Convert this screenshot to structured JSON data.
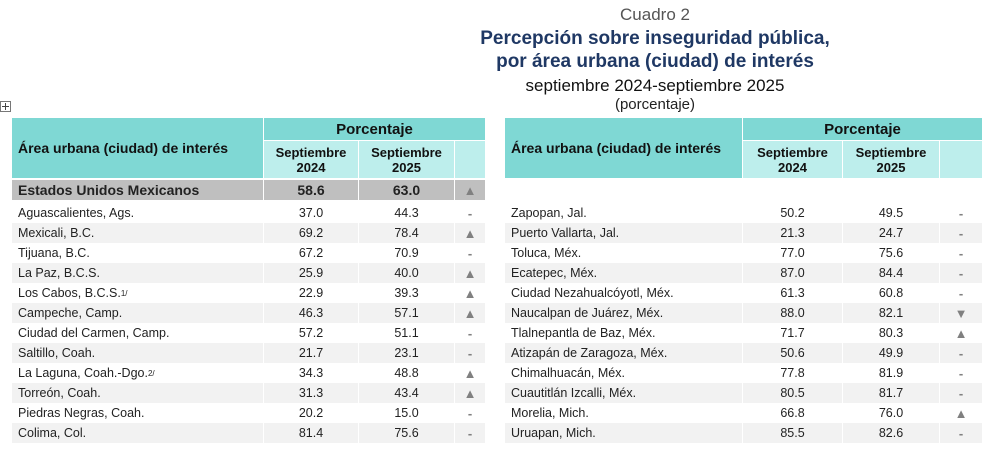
{
  "header": {
    "label": "Cuadro 2",
    "title_lines": [
      "Percepción sobre inseguridad pública,",
      "por área urbana (ciudad) de interés"
    ],
    "subtitle": "septiembre 2024-septiembre 2025",
    "unit": "(porcentaje)"
  },
  "tables": [
    {
      "columns": {
        "area": "Área urbana (ciudad) de interés",
        "group": "Porcentaje",
        "c2024": "Septiembre 2024",
        "c2025": "Septiembre 2025"
      },
      "total": {
        "area": "Estados Unidos Mexicanos",
        "v2024": "58.6",
        "v2025": "63.0",
        "trend": "▲"
      },
      "rows": [
        {
          "area": "Aguascalientes, Ags.",
          "v2024": "37.0",
          "v2025": "44.3",
          "trend": "-"
        },
        {
          "area": "Mexicali, B.C.",
          "v2024": "69.2",
          "v2025": "78.4",
          "trend": "▲"
        },
        {
          "area": "Tijuana, B.C.",
          "v2024": "67.2",
          "v2025": "70.9",
          "trend": "-"
        },
        {
          "area": "La Paz, B.C.S.",
          "v2024": "25.9",
          "v2025": "40.0",
          "trend": "▲"
        },
        {
          "area": "Los Cabos, B.C.S.",
          "note": "1/",
          "v2024": "22.9",
          "v2025": "39.3",
          "trend": "▲"
        },
        {
          "area": "Campeche, Camp.",
          "v2024": "46.3",
          "v2025": "57.1",
          "trend": "▲"
        },
        {
          "area": "Ciudad del Carmen, Camp.",
          "v2024": "57.2",
          "v2025": "51.1",
          "trend": "-"
        },
        {
          "area": "Saltillo, Coah.",
          "v2024": "21.7",
          "v2025": "23.1",
          "trend": "-"
        },
        {
          "area": "La Laguna, Coah.-Dgo.",
          "note": "2/",
          "v2024": "34.3",
          "v2025": "48.8",
          "trend": "▲"
        },
        {
          "area": "Torreón, Coah.",
          "v2024": "31.3",
          "v2025": "43.4",
          "trend": "▲"
        },
        {
          "area": "Piedras Negras, Coah.",
          "v2024": "20.2",
          "v2025": "15.0",
          "trend": "-"
        },
        {
          "area": "Colima, Col.",
          "v2024": "81.4",
          "v2025": "75.6",
          "trend": "-"
        }
      ]
    },
    {
      "columns": {
        "area": "Área urbana (ciudad) de interés",
        "group": "Porcentaje",
        "c2024": "Septiembre 2024",
        "c2025": "Septiembre 2025"
      },
      "rows": [
        {
          "area": "Zapopan, Jal.",
          "v2024": "50.2",
          "v2025": "49.5",
          "trend": "-"
        },
        {
          "area": "Puerto Vallarta, Jal.",
          "v2024": "21.3",
          "v2025": "24.7",
          "trend": "-"
        },
        {
          "area": "Toluca, Méx.",
          "v2024": "77.0",
          "v2025": "75.6",
          "trend": "-"
        },
        {
          "area": "Ecatepec, Méx.",
          "v2024": "87.0",
          "v2025": "84.4",
          "trend": "-"
        },
        {
          "area": "Ciudad Nezahualcóyotl, Méx.",
          "v2024": "61.3",
          "v2025": "60.8",
          "trend": "-"
        },
        {
          "area": "Naucalpan de Juárez, Méx.",
          "v2024": "88.0",
          "v2025": "82.1",
          "trend": "▼"
        },
        {
          "area": "Tlalnepantla de Baz, Méx.",
          "v2024": "71.7",
          "v2025": "80.3",
          "trend": "▲"
        },
        {
          "area": "Atizapán de Zaragoza, Méx.",
          "v2024": "50.6",
          "v2025": "49.9",
          "trend": "-"
        },
        {
          "area": "Chimalhuacán, Méx.",
          "v2024": "77.8",
          "v2025": "81.9",
          "trend": "-"
        },
        {
          "area": "Cuautitlán Izcalli, Méx.",
          "v2024": "80.5",
          "v2025": "81.7",
          "trend": "-"
        },
        {
          "area": "Morelia, Mich.",
          "v2024": "66.8",
          "v2025": "76.0",
          "trend": "▲"
        },
        {
          "area": "Uruapan, Mich.",
          "v2024": "85.5",
          "v2025": "82.6",
          "trend": "-"
        }
      ]
    }
  ]
}
